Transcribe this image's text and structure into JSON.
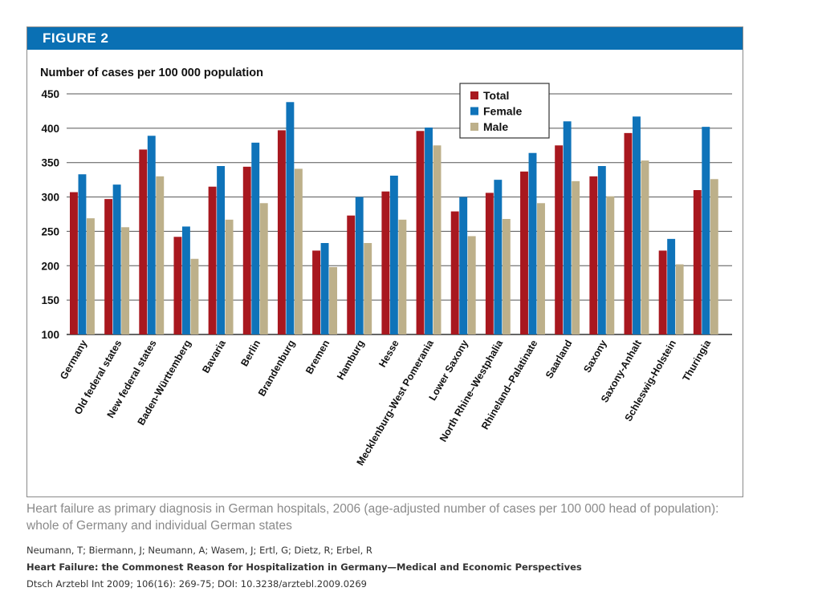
{
  "figure_label": "FIGURE 2",
  "caption": "Heart failure as primary diagnosis in German hospitals, 2006 (age-adjusted number of cases per 100 000 head of population): whole of Germany and individual German states",
  "citation": {
    "authors": "Neumann, T; Biermann, J; Neumann, A; Wasem, J; Ertl, G; Dietz, R; Erbel, R",
    "title": "Heart Failure: the Commonest Reason for Hospitalization in Germany—Medical and Economic Perspectives",
    "source": "Dtsch Arztebl Int 2009; 106(16): 269-75; DOI: 10.3238/arztebl.2009.0269"
  },
  "chart_data": {
    "type": "bar",
    "title": "Number of cases per 100 000 population",
    "xlabel": "",
    "ylabel": "",
    "ylim": [
      100,
      450
    ],
    "yticks": [
      100,
      150,
      200,
      250,
      300,
      350,
      400,
      450
    ],
    "grid": true,
    "legend_position": "top-right",
    "categories": [
      "Germany",
      "Old federal states",
      "New federal states",
      "Baden-Württemberg",
      "Bavaria",
      "Berlin",
      "Brandenburg",
      "Bremen",
      "Hamburg",
      "Hesse",
      "Mecklenburg-West Pomerania",
      "Lower Saxony",
      "North Rhine–Westphalia",
      "Rhineland–Palatinate",
      "Saarland",
      "Saxony",
      "Saxony-Anhalt",
      "Schleswig-Holstein",
      "Thuringia"
    ],
    "series": [
      {
        "name": "Total",
        "color": "#a8181f",
        "values": [
          307,
          297,
          369,
          242,
          315,
          344,
          397,
          222,
          273,
          308,
          396,
          279,
          306,
          337,
          375,
          330,
          393,
          222,
          310
        ]
      },
      {
        "name": "Female",
        "color": "#0f73b9",
        "values": [
          333,
          318,
          389,
          257,
          345,
          379,
          438,
          233,
          300,
          331,
          401,
          300,
          325,
          364,
          410,
          345,
          417,
          239,
          402
        ]
      },
      {
        "name": "Male",
        "color": "#bdb08a",
        "values": [
          269,
          256,
          330,
          210,
          267,
          291,
          341,
          198,
          233,
          267,
          375,
          243,
          268,
          291,
          323,
          301,
          353,
          202,
          326
        ]
      }
    ]
  }
}
